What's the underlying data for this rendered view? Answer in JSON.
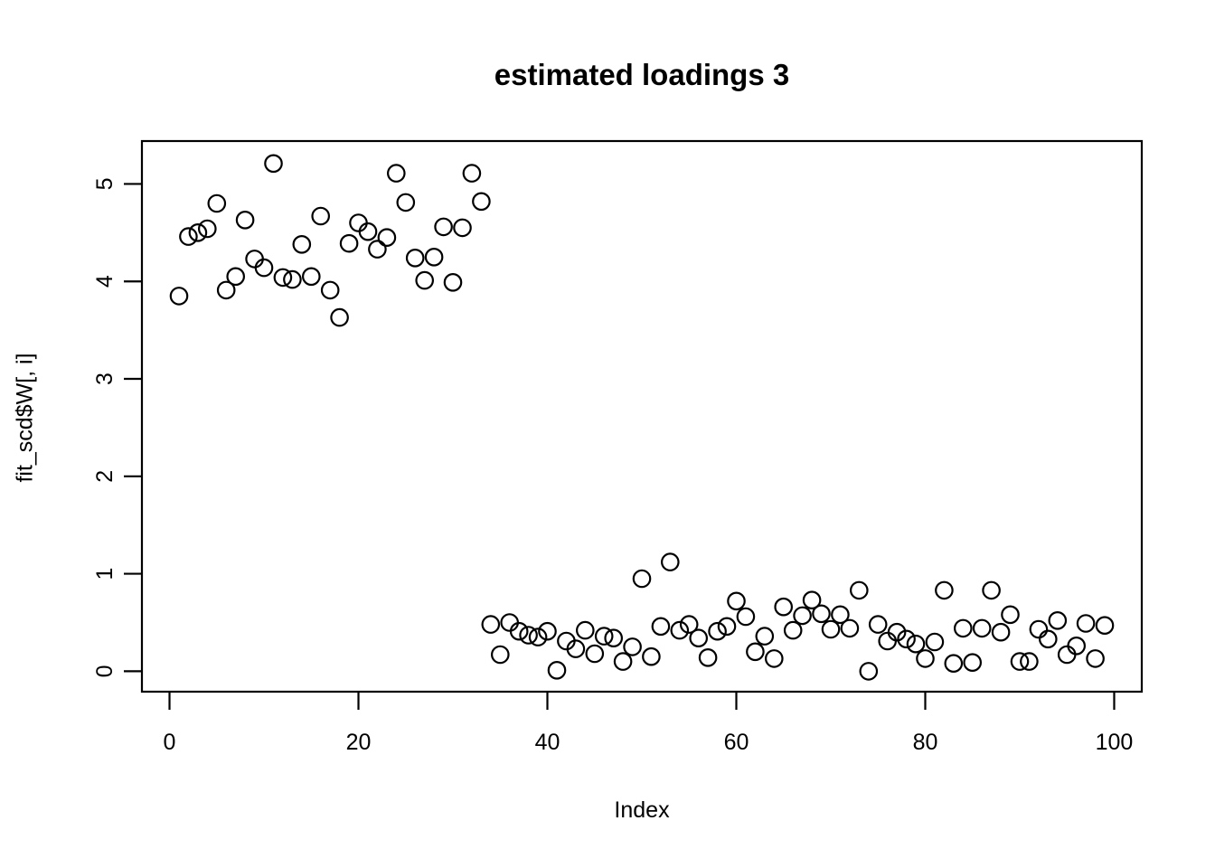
{
  "figure": {
    "title": "estimated loadings 3",
    "xlabel": "Index",
    "ylabel": "fit_scd$W[, i]"
  },
  "chart_data": {
    "type": "scatter",
    "title": "estimated loadings 3",
    "xlabel": "Index",
    "ylabel": "fit_scd$W[, i]",
    "marker": "open-circle",
    "marker_color": "#000000",
    "background_color": "#ffffff",
    "grid": false,
    "legend": null,
    "xlim": [
      -2.92,
      102.92
    ],
    "ylim": [
      -0.21,
      5.44
    ],
    "xticks": [
      0,
      20,
      40,
      60,
      80,
      100
    ],
    "yticks": [
      0,
      1,
      2,
      3,
      4,
      5
    ],
    "x": [
      1,
      2,
      3,
      4,
      5,
      6,
      7,
      8,
      9,
      10,
      11,
      12,
      13,
      14,
      15,
      16,
      17,
      18,
      19,
      20,
      21,
      22,
      23,
      24,
      25,
      26,
      27,
      28,
      29,
      30,
      31,
      32,
      33,
      34,
      35,
      36,
      37,
      38,
      39,
      40,
      41,
      42,
      43,
      44,
      45,
      46,
      47,
      48,
      49,
      50,
      51,
      52,
      53,
      54,
      55,
      56,
      57,
      58,
      59,
      60,
      61,
      62,
      63,
      64,
      65,
      66,
      67,
      68,
      69,
      70,
      71,
      72,
      73,
      74,
      75,
      76,
      77,
      78,
      79,
      80,
      81,
      82,
      83,
      84,
      85,
      86,
      87,
      88,
      89,
      90,
      91,
      92,
      93,
      94,
      95,
      96,
      97,
      98,
      99
    ],
    "y": [
      3.85,
      4.46,
      4.5,
      4.54,
      4.8,
      3.91,
      4.05,
      4.63,
      4.23,
      4.14,
      5.21,
      4.04,
      4.02,
      4.38,
      4.05,
      4.67,
      3.91,
      3.63,
      4.39,
      4.6,
      4.51,
      4.33,
      4.45,
      5.11,
      4.81,
      4.24,
      4.01,
      4.25,
      4.56,
      3.99,
      4.55,
      5.11,
      4.82,
      0.48,
      0.17,
      0.5,
      0.41,
      0.37,
      0.35,
      0.41,
      0.01,
      0.31,
      0.23,
      0.42,
      0.18,
      0.36,
      0.34,
      0.1,
      0.25,
      0.95,
      0.15,
      0.46,
      1.12,
      0.42,
      0.48,
      0.34,
      0.14,
      0.41,
      0.46,
      0.72,
      0.56,
      0.2,
      0.36,
      0.13,
      0.66,
      0.42,
      0.57,
      0.73,
      0.59,
      0.43,
      0.58,
      0.44,
      0.83,
      0.0,
      0.48,
      0.31,
      0.4,
      0.33,
      0.28,
      0.13,
      0.3,
      0.83,
      0.08,
      0.44,
      0.09,
      0.44,
      0.83,
      0.4,
      0.58,
      0.1,
      0.1,
      0.43,
      0.33,
      0.52,
      0.17,
      0.26,
      0.49,
      0.13,
      0.47
    ]
  }
}
